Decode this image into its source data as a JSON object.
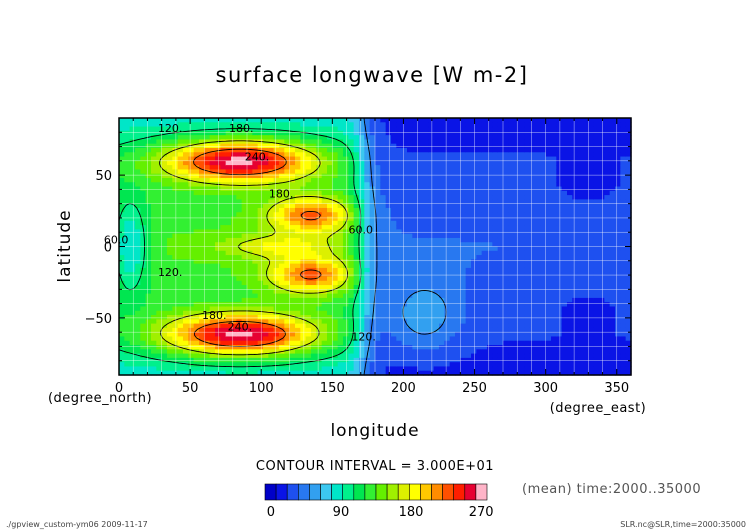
{
  "chart_data": {
    "type": "heatmap",
    "title": "surface longwave [W m-2]",
    "xlabel": "longitude",
    "ylabel": "latitude",
    "x_units": "(degree_east)",
    "y_units": "(degree_north)",
    "xlim": [
      0,
      360
    ],
    "ylim": [
      -90,
      90
    ],
    "x_ticks": [
      0,
      50,
      100,
      150,
      200,
      250,
      300,
      350
    ],
    "y_ticks": [
      -50,
      0,
      50
    ],
    "grid": true,
    "contour_interval_text": "CONTOUR INTERVAL = 3.000E+01",
    "contour_levels": [
      60,
      120,
      180,
      240
    ],
    "contour_labels": [
      {
        "text": "120.",
        "x": 36,
        "y": 83
      },
      {
        "text": "180.",
        "x": 86,
        "y": 83
      },
      {
        "text": "240.",
        "x": 97,
        "y": 63
      },
      {
        "text": "180.",
        "x": 114,
        "y": 37
      },
      {
        "text": "60.0",
        "x": -2,
        "y": 5
      },
      {
        "text": "60.0",
        "x": 170,
        "y": 12
      },
      {
        "text": "120.",
        "x": 36,
        "y": -18
      },
      {
        "text": "180.",
        "x": 67,
        "y": -48
      },
      {
        "text": "240.",
        "x": 85,
        "y": -56
      },
      {
        "text": "120.",
        "x": 172,
        "y": -63
      }
    ],
    "colorbar": {
      "min": 0,
      "max": 285,
      "step": 15,
      "ticks": [
        0,
        90,
        180,
        270
      ],
      "colors": [
        "#0000c8",
        "#0a14e6",
        "#1e50f0",
        "#2878f0",
        "#32a0f0",
        "#3cc8f0",
        "#00e6c8",
        "#00f08c",
        "#00e650",
        "#32f032",
        "#64f000",
        "#a0f000",
        "#dcf000",
        "#ffff00",
        "#ffc800",
        "#ff8c00",
        "#ff5000",
        "#ff1e00",
        "#e60032",
        "#ffb4c8"
      ]
    },
    "field_features": [
      {
        "name": "north-max",
        "lon": 85,
        "lat": 60,
        "value": 285
      },
      {
        "name": "south-max",
        "lon": 85,
        "lat": -62,
        "value": 285
      },
      {
        "name": "mid-north-max",
        "lon": 135,
        "lat": 22,
        "value": 250
      },
      {
        "name": "mid-south-max",
        "lon": 135,
        "lat": -20,
        "value": 250
      },
      {
        "name": "equator-min",
        "lon": 45,
        "lat": 0,
        "value": 180
      },
      {
        "name": "ocean-min",
        "lon": 330,
        "lat": 40,
        "value": 10
      }
    ]
  },
  "mean_time_text": "(mean) time:2000..35000",
  "footer_left": "./gpview_custom-ym06  2009-11-17",
  "footer_right": "SLR.nc@SLR,time=2000:35000",
  "colors": {
    "axis": "#000000",
    "grid": "#ffffff"
  }
}
